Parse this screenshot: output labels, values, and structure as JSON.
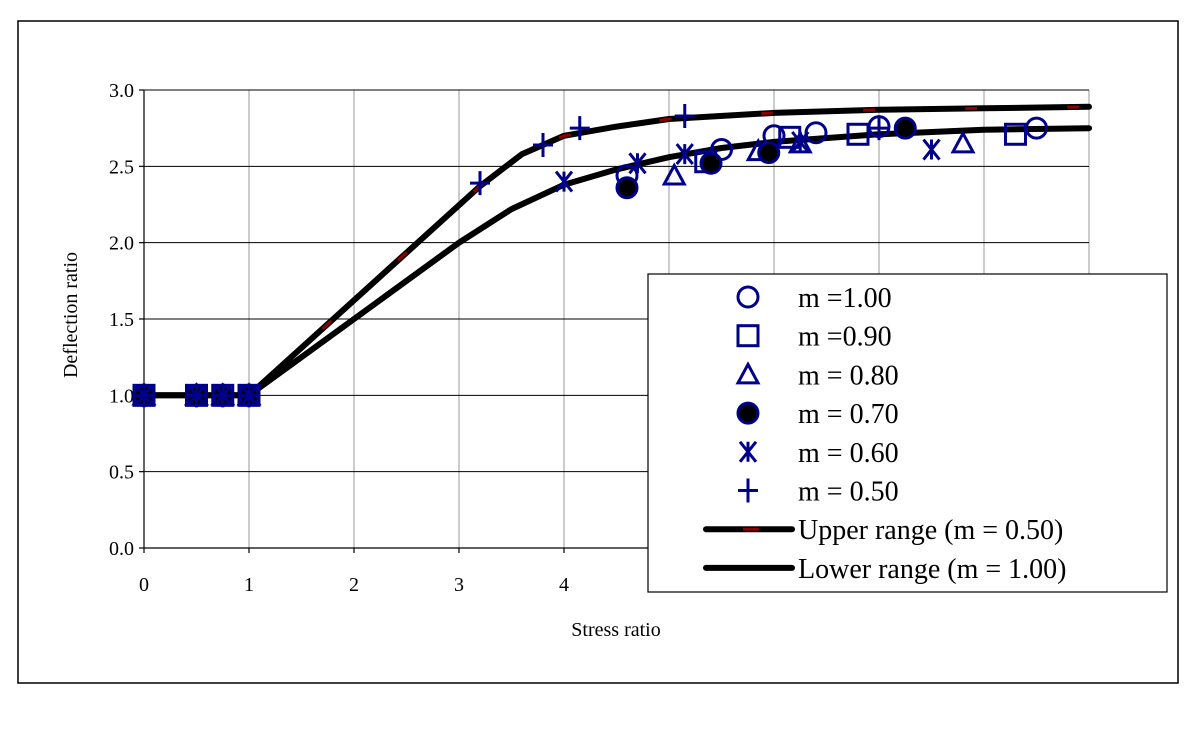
{
  "colors": {
    "marker": "#00008B",
    "curve": "#000000",
    "upper_dash": "#8B0000",
    "grid": "#9a9a9a",
    "gridline_major": "#000000"
  },
  "chart_data": {
    "type": "scatter",
    "title": "",
    "xlabel": "Stress ratio",
    "ylabel": "Deflection ratio",
    "xlim": [
      0,
      9
    ],
    "ylim": [
      0,
      3.0
    ],
    "x_ticks": [
      "0",
      "1",
      "2",
      "3",
      "4"
    ],
    "y_ticks": [
      "0.0",
      "0.5",
      "1.0",
      "1.5",
      "2.0",
      "2.5",
      "3.0"
    ],
    "legend_position": "lower-right",
    "series": [
      {
        "name": "m =1.00",
        "marker": "circle",
        "x": [
          0,
          0.5,
          0.75,
          1.0,
          4.6,
          5.5,
          6.0,
          6.4,
          7.0,
          8.5
        ],
        "y": [
          1.0,
          1.0,
          1.0,
          1.0,
          2.44,
          2.61,
          2.7,
          2.72,
          2.76,
          2.75
        ]
      },
      {
        "name": "m =0.90",
        "marker": "square",
        "x": [
          0,
          0.5,
          0.75,
          1.0,
          5.35,
          6.15,
          6.8,
          8.3
        ],
        "y": [
          1.0,
          1.0,
          1.0,
          1.0,
          2.53,
          2.69,
          2.71,
          2.71
        ]
      },
      {
        "name": "m = 0.80",
        "marker": "triangle",
        "x": [
          0,
          0.5,
          0.75,
          1.0,
          5.05,
          5.85,
          6.25,
          7.8
        ],
        "y": [
          1.0,
          1.0,
          1.0,
          1.0,
          2.44,
          2.6,
          2.65,
          2.65
        ]
      },
      {
        "name": "m = 0.70",
        "marker": "filled-circle",
        "x": [
          0,
          0.5,
          0.75,
          1.0,
          4.6,
          5.4,
          5.95,
          7.25
        ],
        "y": [
          1.0,
          1.0,
          1.0,
          1.0,
          2.36,
          2.52,
          2.59,
          2.75
        ]
      },
      {
        "name": "m = 0.60",
        "marker": "asterisk",
        "x": [
          0,
          0.5,
          0.75,
          1.0,
          4.0,
          4.7,
          5.15,
          6.25,
          7.5
        ],
        "y": [
          1.0,
          1.0,
          1.0,
          1.0,
          2.4,
          2.52,
          2.58,
          2.66,
          2.61
        ]
      },
      {
        "name": "m = 0.50",
        "marker": "plus",
        "x": [
          0,
          0.5,
          0.75,
          1.0,
          3.2,
          3.8,
          4.15,
          5.15,
          7.0
        ],
        "y": [
          1.0,
          1.0,
          1.0,
          1.0,
          2.39,
          2.64,
          2.75,
          2.83,
          2.75
        ]
      }
    ],
    "curves": [
      {
        "name": "Upper range (m = 0.50)",
        "style": "upper",
        "x": [
          0,
          1.0,
          3.2,
          3.6,
          4.0,
          4.5,
          5.0,
          6.0,
          7.0,
          8.0,
          9.0
        ],
        "y": [
          1.0,
          1.0,
          2.37,
          2.58,
          2.7,
          2.76,
          2.81,
          2.85,
          2.87,
          2.88,
          2.89
        ]
      },
      {
        "name": "Lower range (m = 1.00)",
        "style": "lower",
        "x": [
          0,
          1.0,
          3.0,
          3.5,
          4.0,
          4.5,
          5.0,
          5.5,
          6.0,
          7.0,
          8.0,
          9.0
        ],
        "y": [
          1.0,
          1.0,
          2.0,
          2.22,
          2.38,
          2.48,
          2.56,
          2.62,
          2.66,
          2.71,
          2.74,
          2.75
        ]
      }
    ]
  }
}
